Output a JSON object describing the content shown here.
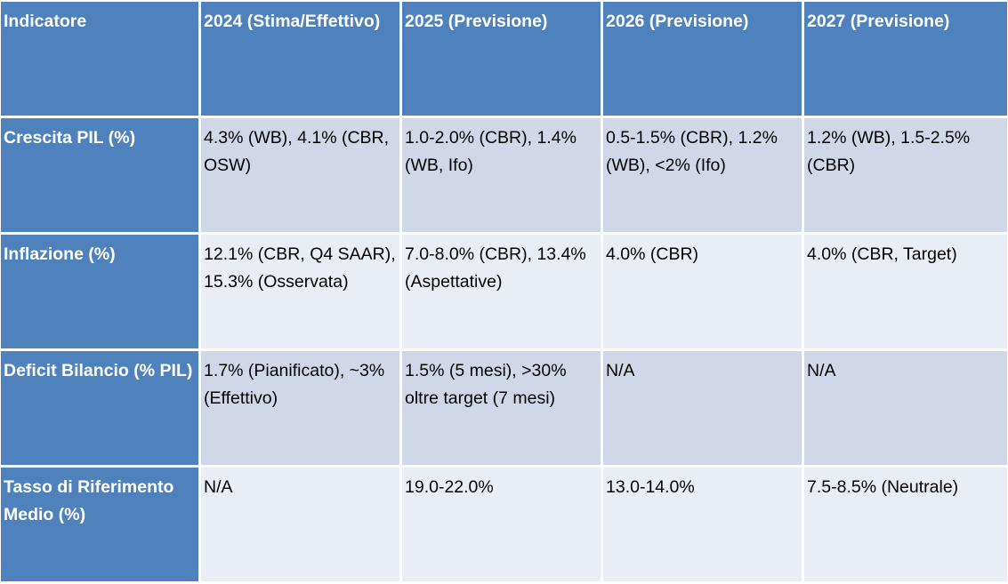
{
  "table": {
    "headers": [
      "Indicatore",
      "2024 (Stima/Effettivo)",
      "2025 (Previsione)",
      "2026 (Previsione)",
      "2027 (Previsione)"
    ],
    "rows": [
      {
        "label": "Crescita PIL (%)",
        "cells": [
          "4.3% (WB), 4.1% (CBR, OSW)",
          "1.0-2.0% (CBR), 1.4% (WB, Ifo)",
          "0.5-1.5% (CBR), 1.2% (WB), <2% (Ifo)",
          "1.2% (WB), 1.5-2.5% (CBR)"
        ]
      },
      {
        "label": "Inflazione (%)",
        "cells": [
          "12.1% (CBR, Q4 SAAR), 15.3% (Osservata)",
          "7.0-8.0% (CBR), 13.4% (Aspettative)",
          "4.0% (CBR)",
          "4.0% (CBR, Target)"
        ]
      },
      {
        "label": "Deficit Bilancio (% PIL)",
        "cells": [
          "1.7% (Pianificato), ~3% (Effettivo)",
          "1.5% (5 mesi), >30% oltre target (7 mesi)",
          "N/A",
          "N/A"
        ]
      },
      {
        "label": "Tasso di Riferimento Medio (%)",
        "cells": [
          "N/A",
          "19.0-22.0%",
          "13.0-14.0%",
          "7.5-8.5% (Neutrale)"
        ]
      }
    ]
  },
  "colors": {
    "header_bg": "#4f81bd",
    "header_text": "#ffffff",
    "row_odd_bg": "#d0d8e8",
    "row_even_bg": "#e9edf4"
  }
}
